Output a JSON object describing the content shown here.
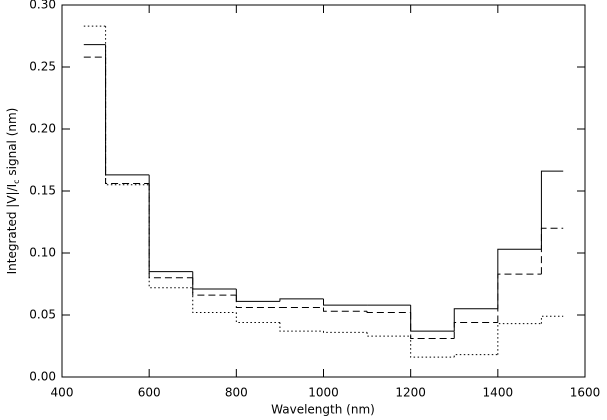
{
  "chart_data": {
    "type": "histogram",
    "xlabel": "Wavelength (nm)",
    "ylabel": "Integrated |V|/I",
    "ylabel_sub": "c",
    "ylabel_end": " signal (nm)",
    "bins": [
      450,
      500,
      600,
      700,
      800,
      900,
      1000,
      1100,
      1200,
      1300,
      1400,
      1500,
      1550
    ],
    "series": [
      {
        "style": "solid",
        "color": "#000000",
        "values": [
          0.268,
          0.163,
          0.085,
          0.071,
          0.061,
          0.063,
          0.058,
          0.058,
          0.037,
          0.055,
          0.103,
          0.166
        ]
      },
      {
        "style": "dashed",
        "color": "#000000",
        "values": [
          0.258,
          0.156,
          0.08,
          0.066,
          0.056,
          0.056,
          0.053,
          0.052,
          0.031,
          0.044,
          0.083,
          0.12
        ]
      },
      {
        "style": "dotted",
        "color": "#000000",
        "values": [
          0.283,
          0.155,
          0.072,
          0.052,
          0.044,
          0.037,
          0.036,
          0.033,
          0.016,
          0.018,
          0.043,
          0.049
        ]
      }
    ],
    "xlim": [
      400,
      1600
    ],
    "xticks": [
      400,
      600,
      800,
      1000,
      1200,
      1400,
      1600
    ],
    "ylim": [
      0,
      0.3
    ],
    "yticks": [
      {
        "value": 0,
        "label": "0.00"
      },
      0.05,
      {
        "value": 0.1,
        "label": "0.10"
      },
      0.15,
      {
        "value": 0.2,
        "label": "0.20"
      },
      0.25,
      {
        "value": 0.3,
        "label": "0.30"
      }
    ]
  }
}
